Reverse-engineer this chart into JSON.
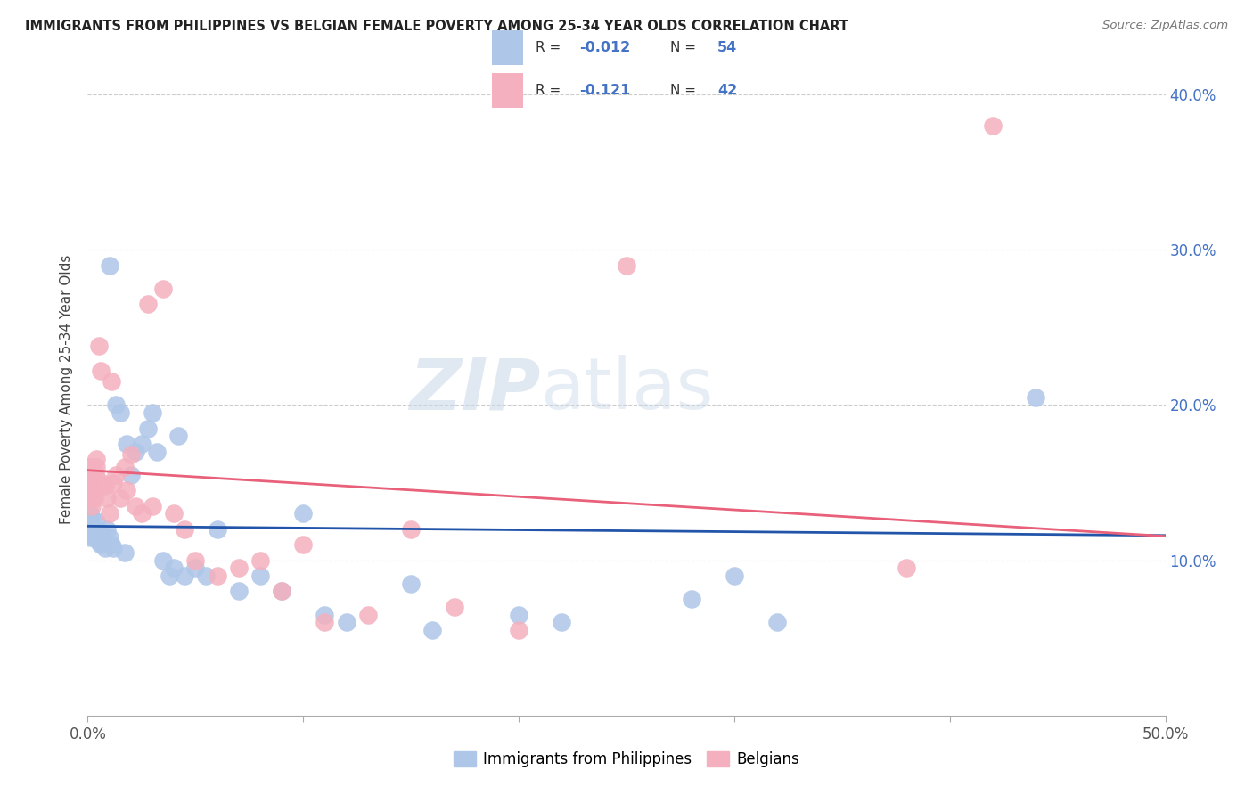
{
  "title": "IMMIGRANTS FROM PHILIPPINES VS BELGIAN FEMALE POVERTY AMONG 25-34 YEAR OLDS CORRELATION CHART",
  "source": "Source: ZipAtlas.com",
  "ylabel": "Female Poverty Among 25-34 Year Olds",
  "xlim": [
    0.0,
    0.5
  ],
  "ylim": [
    0.0,
    0.42
  ],
  "grid_color": "#cccccc",
  "background": "#ffffff",
  "series1_color": "#aec6e8",
  "series1_line_color": "#2255aa",
  "series2_color": "#f4b0be",
  "series2_line_color": "#e8607a",
  "legend_label1": "Immigrants from Philippines",
  "legend_label2": "Belgians",
  "R1": -0.012,
  "N1": 54,
  "R2": -0.121,
  "N2": 42,
  "series1_x": [
    0.001,
    0.001,
    0.001,
    0.001,
    0.002,
    0.002,
    0.002,
    0.003,
    0.003,
    0.004,
    0.004,
    0.005,
    0.005,
    0.006,
    0.006,
    0.007,
    0.008,
    0.009,
    0.01,
    0.011,
    0.012,
    0.013,
    0.015,
    0.017,
    0.018,
    0.02,
    0.022,
    0.025,
    0.028,
    0.03,
    0.032,
    0.035,
    0.038,
    0.04,
    0.042,
    0.045,
    0.05,
    0.055,
    0.06,
    0.07,
    0.08,
    0.09,
    0.1,
    0.11,
    0.12,
    0.15,
    0.16,
    0.2,
    0.22,
    0.28,
    0.3,
    0.32,
    0.44,
    0.01
  ],
  "series1_y": [
    0.13,
    0.125,
    0.12,
    0.115,
    0.127,
    0.122,
    0.118,
    0.115,
    0.12,
    0.125,
    0.118,
    0.112,
    0.115,
    0.11,
    0.118,
    0.113,
    0.108,
    0.12,
    0.115,
    0.11,
    0.108,
    0.2,
    0.195,
    0.105,
    0.175,
    0.155,
    0.17,
    0.175,
    0.185,
    0.195,
    0.17,
    0.1,
    0.09,
    0.095,
    0.18,
    0.09,
    0.095,
    0.09,
    0.12,
    0.08,
    0.09,
    0.08,
    0.13,
    0.065,
    0.06,
    0.085,
    0.055,
    0.065,
    0.06,
    0.075,
    0.09,
    0.06,
    0.205,
    0.29
  ],
  "series2_x": [
    0.001,
    0.001,
    0.002,
    0.002,
    0.003,
    0.003,
    0.004,
    0.004,
    0.005,
    0.006,
    0.007,
    0.008,
    0.009,
    0.01,
    0.011,
    0.012,
    0.013,
    0.015,
    0.017,
    0.018,
    0.02,
    0.022,
    0.025,
    0.028,
    0.03,
    0.035,
    0.04,
    0.045,
    0.05,
    0.06,
    0.07,
    0.08,
    0.09,
    0.1,
    0.11,
    0.13,
    0.15,
    0.17,
    0.2,
    0.25,
    0.38,
    0.42
  ],
  "series2_y": [
    0.15,
    0.14,
    0.145,
    0.135,
    0.14,
    0.155,
    0.165,
    0.16,
    0.238,
    0.222,
    0.15,
    0.148,
    0.14,
    0.13,
    0.215,
    0.15,
    0.155,
    0.14,
    0.16,
    0.145,
    0.168,
    0.135,
    0.13,
    0.265,
    0.135,
    0.275,
    0.13,
    0.12,
    0.1,
    0.09,
    0.095,
    0.1,
    0.08,
    0.11,
    0.06,
    0.065,
    0.12,
    0.07,
    0.055,
    0.29,
    0.095,
    0.38
  ]
}
